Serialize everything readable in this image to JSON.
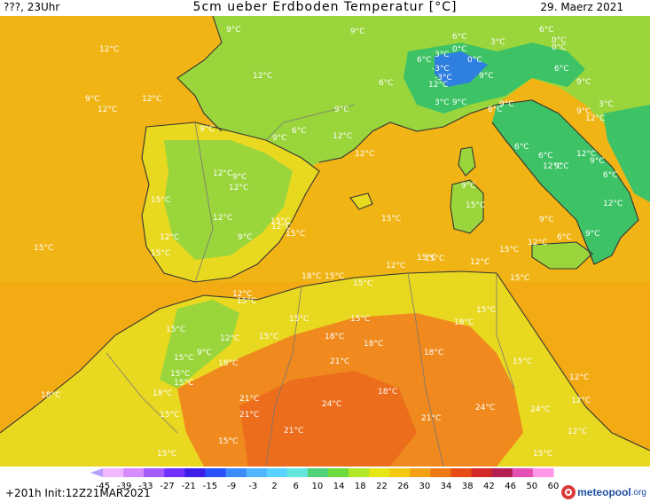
{
  "header": {
    "run_label": "???, 23Uhr",
    "title": "5cm ueber Erdboden Temperatur [°C]",
    "date": "29. Maerz 2021"
  },
  "footer": {
    "forecast_info": "+201h Init:12Z21MAR2021",
    "logo_text_a": "meteopool",
    "logo_text_b": ".org"
  },
  "legend": {
    "ticks": [
      "-45",
      "-39",
      "-33",
      "-27",
      "-21",
      "-15",
      "-9",
      "-3",
      "2",
      "6",
      "10",
      "14",
      "18",
      "22",
      "26",
      "30",
      "34",
      "38",
      "42",
      "46",
      "50",
      "60"
    ],
    "colors": [
      "#f0b8ff",
      "#d68bff",
      "#a45cff",
      "#7030ff",
      "#3c1ee6",
      "#2850ff",
      "#3c8cff",
      "#50b4ff",
      "#5ad2ff",
      "#64e6dc",
      "#50d278",
      "#6cdc3c",
      "#b4e628",
      "#e6e614",
      "#f5c814",
      "#f5a014",
      "#f07814",
      "#e64b14",
      "#d22828",
      "#b41e50",
      "#e650b4",
      "#ff96e6"
    ]
  },
  "map": {
    "colors": {
      "sea": "#f0b414",
      "sea_warm": "#f5a514",
      "land_mild": "#e8d820",
      "land_cool": "#9ad53c",
      "land_cold": "#3ec266",
      "land_colder": "#30b080",
      "land_coldest": "#2f7fe0",
      "land_hot": "#f08a1e",
      "land_hotter": "#ec6d1c",
      "coast": "#333333",
      "border": "#777777"
    },
    "labels": [
      {
        "t": "12°C"
      },
      {
        "t": "9°C"
      },
      {
        "t": "9°C"
      },
      {
        "t": "6°C"
      },
      {
        "t": "3°C"
      },
      {
        "t": "0°C"
      },
      {
        "t": "6°C"
      },
      {
        "t": "0°C"
      },
      {
        "t": "0°C"
      },
      {
        "t": "6°C"
      },
      {
        "t": "3°C"
      },
      {
        "t": "-3°C"
      },
      {
        "t": "0°C"
      },
      {
        "t": "-3°C"
      },
      {
        "t": "6°C"
      },
      {
        "t": "9°C"
      },
      {
        "t": "12°C"
      },
      {
        "t": "6°C"
      },
      {
        "t": "12°C"
      },
      {
        "t": "9°C"
      },
      {
        "t": "3°C"
      },
      {
        "t": "12°C"
      },
      {
        "t": "9°C"
      },
      {
        "t": "9°C"
      },
      {
        "t": "6°C"
      },
      {
        "t": "9°C"
      },
      {
        "t": "9°C"
      },
      {
        "t": "12°C"
      },
      {
        "t": "3°C"
      },
      {
        "t": "6°C"
      },
      {
        "t": "9°C"
      },
      {
        "t": "12°C"
      },
      {
        "t": "6°C"
      },
      {
        "t": "12°C"
      },
      {
        "t": "9°C"
      },
      {
        "t": "12°C"
      },
      {
        "t": "6°C"
      },
      {
        "t": "9°C"
      },
      {
        "t": "9°C"
      },
      {
        "t": "6°C"
      },
      {
        "t": "12°C"
      },
      {
        "t": "9°C"
      },
      {
        "t": "12°C"
      },
      {
        "t": "9°C"
      },
      {
        "t": "12°C"
      },
      {
        "t": "15°C"
      },
      {
        "t": "12°C"
      },
      {
        "t": "15°C"
      },
      {
        "t": "9°C"
      },
      {
        "t": "6°C"
      },
      {
        "t": "9°C"
      },
      {
        "t": "12°C"
      },
      {
        "t": "12°C"
      },
      {
        "t": "15°C"
      },
      {
        "t": "15°C"
      },
      {
        "t": "12°C"
      },
      {
        "t": "9°C"
      },
      {
        "t": "15°C"
      },
      {
        "t": "12°C"
      },
      {
        "t": "15°C"
      },
      {
        "t": "15°C"
      },
      {
        "t": "18°C"
      },
      {
        "t": "15°C"
      },
      {
        "t": "15°C"
      },
      {
        "t": "15°C"
      },
      {
        "t": "12°C"
      },
      {
        "t": "15°C"
      },
      {
        "t": "12°C"
      },
      {
        "t": "15°C"
      },
      {
        "t": "15°C"
      },
      {
        "t": "15°C"
      },
      {
        "t": "12°C"
      },
      {
        "t": "15°C"
      },
      {
        "t": "15°C"
      },
      {
        "t": "15°C"
      },
      {
        "t": "15°C"
      },
      {
        "t": "18°C"
      },
      {
        "t": "18°C"
      },
      {
        "t": "15°C"
      },
      {
        "t": "18°C"
      },
      {
        "t": "18°C"
      },
      {
        "t": "12°C"
      },
      {
        "t": "9°C"
      },
      {
        "t": "15°C"
      },
      {
        "t": "15°C"
      },
      {
        "t": "15°C"
      },
      {
        "t": "18°C"
      },
      {
        "t": "15°C"
      },
      {
        "t": "21°C"
      },
      {
        "t": "18°C"
      },
      {
        "t": "15°C"
      },
      {
        "t": "12°C"
      },
      {
        "t": "18°C"
      },
      {
        "t": "21°C"
      },
      {
        "t": "24°C"
      },
      {
        "t": "24°C"
      },
      {
        "t": "21°C"
      },
      {
        "t": "21°C"
      },
      {
        "t": "18°C"
      },
      {
        "t": "12°C"
      },
      {
        "t": "15°C"
      },
      {
        "t": "24°C"
      },
      {
        "t": "21°C"
      },
      {
        "t": "12°C"
      },
      {
        "t": "15°C"
      },
      {
        "t": "15°C"
      },
      {
        "t": "9°C"
      },
      {
        "t": "12°C"
      }
    ]
  }
}
